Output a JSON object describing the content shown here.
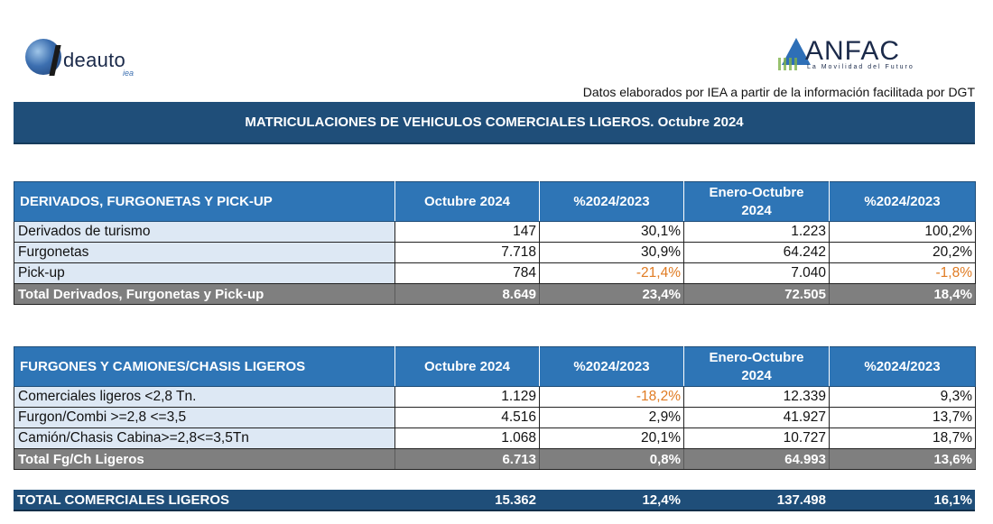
{
  "logos": {
    "ideauto": {
      "word": "deauto",
      "sub": "iea"
    },
    "anfac": {
      "word": "ANFAC",
      "tagline": "La Movilidad del Futuro"
    }
  },
  "source_note": "Datos elaborados por IEA a partir de la información facilitada por DGT",
  "title": "MATRICULACIONES DE VEHICULOS COMERCIALES LIGEROS. Octubre 2024",
  "colors": {
    "header_dark": "#1f4e79",
    "header": "#2e75b6",
    "label_bg": "#dde8f4",
    "total_bg": "#7f7f7f",
    "negative": "#e07b22"
  },
  "table1": {
    "headers": [
      "DERIVADOS, FURGONETAS Y PICK-UP",
      "Octubre 2024",
      "%2024/2023",
      "Enero-Octubre 2024",
      "%2024/2023"
    ],
    "rows": [
      {
        "label": "Derivados de turismo",
        "oct": "147",
        "pct": "30,1%",
        "ytd": "1.223",
        "pct_ytd": "100,2%"
      },
      {
        "label": "Furgonetas",
        "oct": "7.718",
        "pct": "30,9%",
        "ytd": "64.242",
        "pct_ytd": "20,2%"
      },
      {
        "label": "Pick-up",
        "oct": "784",
        "pct": "-21,4%",
        "ytd": "7.040",
        "pct_ytd": "-1,8%"
      }
    ],
    "total": {
      "label": "Total Derivados, Furgonetas y Pick-up",
      "oct": "8.649",
      "pct": "23,4%",
      "ytd": "72.505",
      "pct_ytd": "18,4%"
    }
  },
  "table2": {
    "headers": [
      "FURGONES Y CAMIONES/CHASIS LIGEROS",
      "Octubre 2024",
      "%2024/2023",
      "Enero-Octubre 2024",
      "%2024/2023"
    ],
    "rows": [
      {
        "label": "Comerciales ligeros <2,8 Tn.",
        "oct": "1.129",
        "pct": "-18,2%",
        "ytd": "12.339",
        "pct_ytd": "9,3%"
      },
      {
        "label": "Furgon/Combi >=2,8 <=3,5",
        "oct": "4.516",
        "pct": "2,9%",
        "ytd": "41.927",
        "pct_ytd": "13,7%"
      },
      {
        "label": "Camión/Chasis Cabina>=2,8<=3,5Tn",
        "oct": "1.068",
        "pct": "20,1%",
        "ytd": "10.727",
        "pct_ytd": "18,7%"
      }
    ],
    "total": {
      "label": "Total Fg/Ch Ligeros",
      "oct": "6.713",
      "pct": "0,8%",
      "ytd": "64.993",
      "pct_ytd": "13,6%"
    }
  },
  "grand_total": {
    "label": "TOTAL COMERCIALES LIGEROS",
    "oct": "15.362",
    "pct": "12,4%",
    "ytd": "137.498",
    "pct_ytd": "16,1%"
  }
}
